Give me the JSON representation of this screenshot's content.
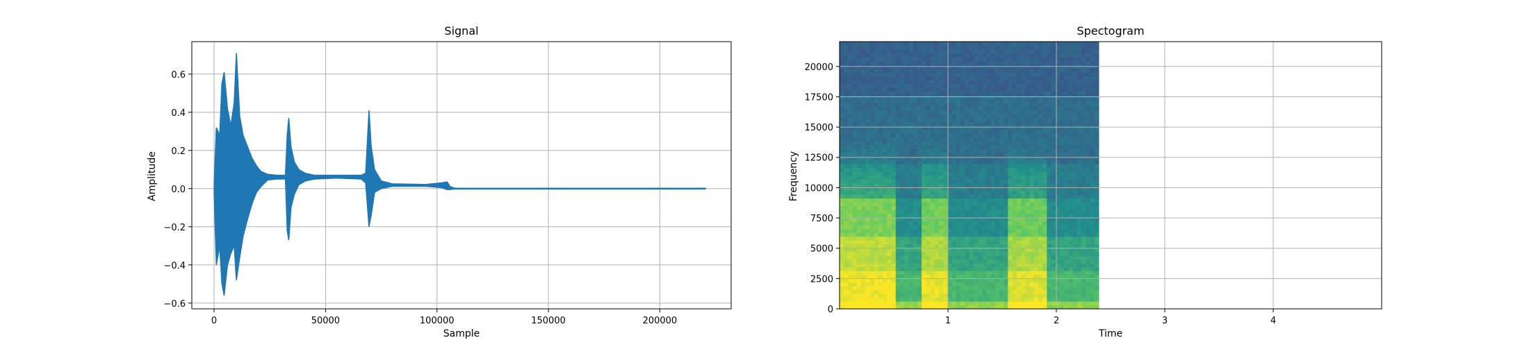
{
  "chart_data": [
    {
      "type": "line",
      "title": "Signal",
      "xlabel": "Sample",
      "ylabel": "Amplitude",
      "xlim": [
        -10000,
        232000
      ],
      "ylim": [
        -0.63,
        0.77
      ],
      "xticks": [
        0,
        50000,
        100000,
        150000,
        200000
      ],
      "yticks": [
        -0.6,
        -0.4,
        -0.2,
        0.0,
        0.2,
        0.4,
        0.6
      ],
      "xtick_labels": [
        "0",
        "50000",
        "100000",
        "150000",
        "200000"
      ],
      "ytick_labels": [
        "−0.6",
        "−0.4",
        "−0.2",
        "0.0",
        "0.2",
        "0.4",
        "0.6"
      ],
      "grid": true,
      "color": "#1f77b4",
      "samples_total": 220500,
      "envelope": [
        {
          "x": 0,
          "max": 0.02,
          "min": -0.02
        },
        {
          "x": 1000,
          "max": 0.32,
          "min": -0.4
        },
        {
          "x": 2500,
          "max": 0.28,
          "min": -0.3
        },
        {
          "x": 3500,
          "max": 0.55,
          "min": -0.5
        },
        {
          "x": 4500,
          "max": 0.61,
          "min": -0.56
        },
        {
          "x": 6000,
          "max": 0.42,
          "min": -0.4
        },
        {
          "x": 7500,
          "max": 0.33,
          "min": -0.34
        },
        {
          "x": 9000,
          "max": 0.45,
          "min": -0.3
        },
        {
          "x": 10000,
          "max": 0.71,
          "min": -0.48
        },
        {
          "x": 11500,
          "max": 0.38,
          "min": -0.36
        },
        {
          "x": 13000,
          "max": 0.28,
          "min": -0.25
        },
        {
          "x": 15000,
          "max": 0.22,
          "min": -0.16
        },
        {
          "x": 17000,
          "max": 0.16,
          "min": -0.08
        },
        {
          "x": 19000,
          "max": 0.12,
          "min": -0.02
        },
        {
          "x": 21000,
          "max": 0.09,
          "min": 0.01
        },
        {
          "x": 24000,
          "max": 0.075,
          "min": 0.045
        },
        {
          "x": 28000,
          "max": 0.07,
          "min": 0.05
        },
        {
          "x": 32000,
          "max": 0.07,
          "min": 0.05
        },
        {
          "x": 32800,
          "max": 0.28,
          "min": -0.22
        },
        {
          "x": 33500,
          "max": 0.37,
          "min": -0.27
        },
        {
          "x": 34500,
          "max": 0.22,
          "min": -0.1
        },
        {
          "x": 36000,
          "max": 0.14,
          "min": -0.03
        },
        {
          "x": 38000,
          "max": 0.1,
          "min": 0.02
        },
        {
          "x": 41000,
          "max": 0.08,
          "min": 0.04
        },
        {
          "x": 45000,
          "max": 0.07,
          "min": 0.05
        },
        {
          "x": 55000,
          "max": 0.07,
          "min": 0.055
        },
        {
          "x": 66000,
          "max": 0.07,
          "min": 0.05
        },
        {
          "x": 68000,
          "max": 0.08,
          "min": 0.03
        },
        {
          "x": 69500,
          "max": 0.41,
          "min": -0.2
        },
        {
          "x": 70500,
          "max": 0.22,
          "min": -0.14
        },
        {
          "x": 72000,
          "max": 0.1,
          "min": -0.02
        },
        {
          "x": 75000,
          "max": 0.04,
          "min": 0.0
        },
        {
          "x": 80000,
          "max": 0.025,
          "min": 0.012
        },
        {
          "x": 95000,
          "max": 0.022,
          "min": 0.012
        },
        {
          "x": 102000,
          "max": 0.03,
          "min": 0.005
        },
        {
          "x": 104500,
          "max": 0.035,
          "min": -0.005
        },
        {
          "x": 106000,
          "max": 0.01,
          "min": -0.005
        },
        {
          "x": 108000,
          "max": 0.002,
          "min": -0.002
        },
        {
          "x": 220500,
          "max": 0.002,
          "min": -0.002
        }
      ]
    },
    {
      "type": "heatmap",
      "title": "Spectogram",
      "xlabel": "Time",
      "ylabel": "Frequency",
      "xlim": [
        0,
        5.0
      ],
      "ylim": [
        0,
        22050
      ],
      "xticks": [
        1,
        2,
        3,
        4
      ],
      "yticks": [
        0,
        2500,
        5000,
        7500,
        10000,
        12500,
        15000,
        17500,
        20000
      ],
      "xtick_labels": [
        "1",
        "2",
        "3",
        "4"
      ],
      "ytick_labels": [
        "0",
        "2500",
        "5000",
        "7500",
        "10000",
        "12500",
        "15000",
        "17500",
        "20000"
      ],
      "grid": true,
      "data_extent_time": 2.39,
      "colormap": [
        "#440154",
        "#3b528b",
        "#21918c",
        "#5ec962",
        "#fde725"
      ],
      "energy_bands": [
        {
          "f_max": 600,
          "level": 0.95
        },
        {
          "f_max": 3000,
          "level": 0.78
        },
        {
          "f_max": 6000,
          "level": 0.7
        },
        {
          "f_max": 9000,
          "level": 0.6
        },
        {
          "f_max": 12000,
          "level": 0.42
        },
        {
          "f_max": 17500,
          "level": 0.36
        },
        {
          "f_max": 22050,
          "level": 0.31
        }
      ],
      "events": [
        {
          "t0": 0.0,
          "t1": 0.5,
          "strength": 1.0
        },
        {
          "t0": 0.74,
          "t1": 1.0,
          "strength": 0.9
        },
        {
          "t0": 1.56,
          "t1": 1.9,
          "strength": 0.85
        }
      ]
    }
  ]
}
